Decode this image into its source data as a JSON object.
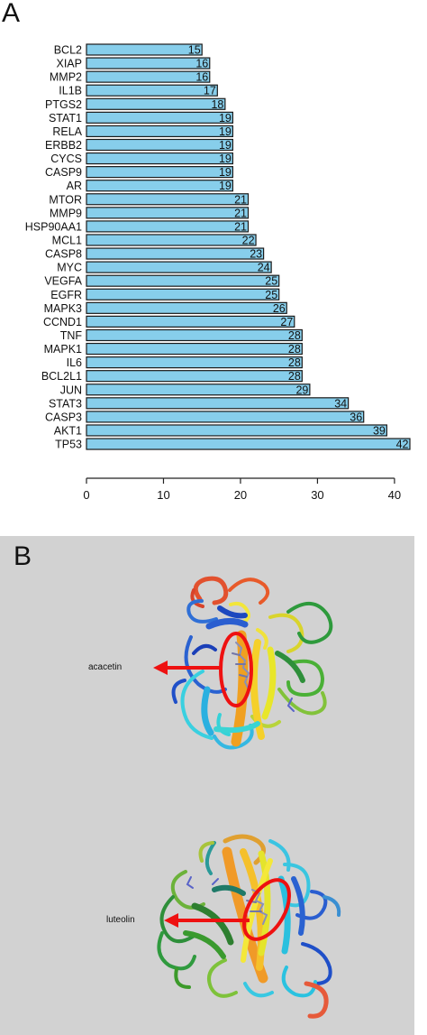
{
  "panels": {
    "a_label": "A",
    "b_label": "B"
  },
  "chart_data": {
    "type": "bar",
    "orientation": "horizontal",
    "categories": [
      "BCL2",
      "XIAP",
      "MMP2",
      "IL1B",
      "PTGS2",
      "STAT1",
      "RELA",
      "ERBB2",
      "CYCS",
      "CASP9",
      "AR",
      "MTOR",
      "MMP9",
      "HSP90AA1",
      "MCL1",
      "CASP8",
      "MYC",
      "VEGFA",
      "EGFR",
      "MAPK3",
      "CCND1",
      "TNF",
      "MAPK1",
      "IL6",
      "BCL2L1",
      "JUN",
      "STAT3",
      "CASP3",
      "AKT1",
      "TP53"
    ],
    "values": [
      15,
      16,
      16,
      17,
      18,
      19,
      19,
      19,
      19,
      19,
      19,
      21,
      21,
      21,
      22,
      23,
      24,
      25,
      25,
      26,
      27,
      28,
      28,
      28,
      28,
      29,
      34,
      36,
      39,
      42
    ],
    "value_labels": [
      "15",
      "16",
      "16",
      "17",
      "18",
      "19",
      "19",
      "19",
      "19",
      "19",
      "19",
      "21",
      "21",
      "21",
      "22",
      "23",
      "24",
      "25",
      "25",
      "26",
      "27",
      "28",
      "28",
      "28",
      "28",
      "29",
      "34",
      "36",
      "39",
      "42"
    ],
    "xticks": [
      0,
      10,
      20,
      30,
      40
    ],
    "xtick_labels": [
      "0",
      "10",
      "20",
      "30",
      "40"
    ],
    "xlim": [
      0,
      42
    ],
    "title": "",
    "xlabel": "",
    "ylabel": "",
    "grid": false,
    "bar_color": "#87ceeb",
    "bar_edge": "#1a1a1a"
  },
  "docking": {
    "ligands": [
      {
        "name": "acacetin"
      },
      {
        "name": "luteolin"
      }
    ],
    "background": "#d2d2d2",
    "marker_color": "#ee1111"
  }
}
